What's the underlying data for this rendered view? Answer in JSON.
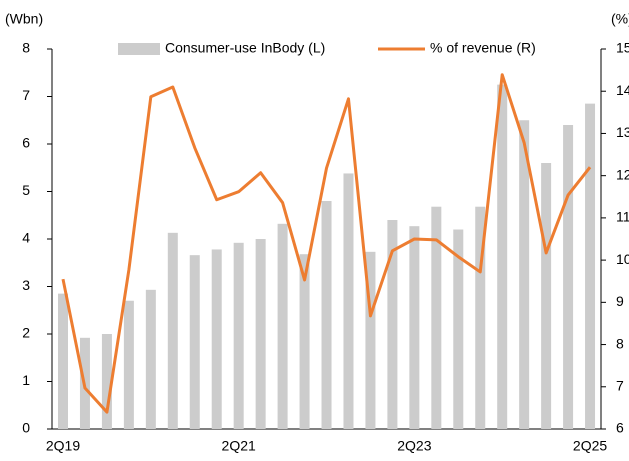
{
  "chart_data": {
    "type": "bar_line",
    "y_label": "(Wbn)",
    "y2_label": "(%)",
    "categories": [
      "2Q19",
      null,
      null,
      null,
      null,
      null,
      null,
      null,
      "2Q21",
      null,
      null,
      null,
      null,
      null,
      null,
      null,
      "2Q23",
      null,
      null,
      null,
      null,
      null,
      null,
      null,
      "2Q25"
    ],
    "series": [
      {
        "name": "Consumer-use InBody (L)",
        "type": "bar",
        "color": "#cccccc",
        "values": [
          2.85,
          1.92,
          2.0,
          2.7,
          2.93,
          4.13,
          3.66,
          3.78,
          3.92,
          4.0,
          4.32,
          3.68,
          4.8,
          5.38,
          3.73,
          4.4,
          4.27,
          4.68,
          4.2,
          4.68,
          7.25,
          6.5,
          5.6,
          6.4,
          6.85
        ]
      },
      {
        "name": "% of revenue (R)",
        "type": "line",
        "axis": "y2",
        "color": "#ed7d31",
        "values": [
          9.55,
          6.97,
          6.4,
          9.77,
          13.87,
          14.1,
          12.66,
          11.43,
          11.62,
          12.07,
          11.36,
          9.53,
          12.18,
          13.82,
          8.68,
          10.22,
          10.5,
          10.48,
          10.08,
          9.72,
          14.39,
          12.78,
          10.17,
          11.54,
          12.2
        ]
      }
    ],
    "ylim": [
      0,
      8
    ],
    "yticks": [
      0,
      1,
      2,
      3,
      4,
      5,
      6,
      7,
      8
    ],
    "y2lim": [
      6,
      15
    ],
    "y2ticks": [
      6,
      7,
      8,
      9,
      10,
      11,
      12,
      13,
      14,
      15
    ],
    "legend": "top"
  }
}
